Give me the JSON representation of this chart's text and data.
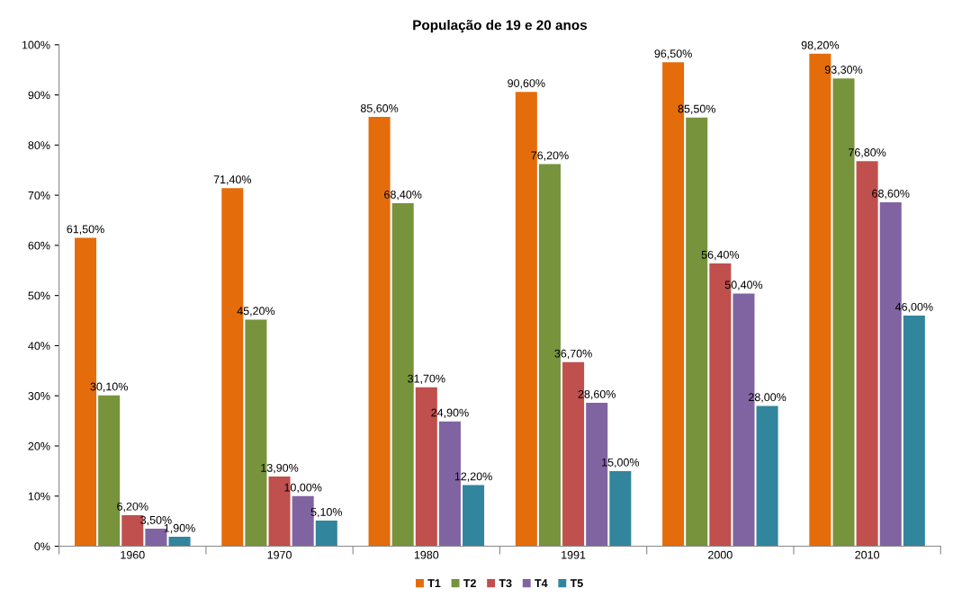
{
  "chart_data": {
    "type": "bar",
    "title": "População de 19 e 20 anos",
    "categories": [
      "1960",
      "1970",
      "1980",
      "1991",
      "2000",
      "2010"
    ],
    "series": [
      {
        "name": "T1",
        "color": "#e46c0a",
        "values": [
          61.5,
          71.4,
          85.6,
          90.6,
          96.5,
          98.2
        ],
        "value_labels": [
          "61,50%",
          "71,40%",
          "85,60%",
          "90,60%",
          "96,50%",
          "98,20%"
        ]
      },
      {
        "name": "T2",
        "color": "#77933c",
        "values": [
          30.1,
          45.2,
          68.4,
          76.2,
          85.5,
          93.3
        ],
        "value_labels": [
          "30,10%",
          "45,20%",
          "68,40%",
          "76,20%",
          "85,50%",
          "93,30%"
        ]
      },
      {
        "name": "T3",
        "color": "#c0504d",
        "values": [
          6.2,
          13.9,
          31.7,
          36.7,
          56.4,
          76.8
        ],
        "value_labels": [
          "6,20%",
          "13,90%",
          "31,70%",
          "36,70%",
          "56,40%",
          "76,80%"
        ]
      },
      {
        "name": "T4",
        "color": "#8064a2",
        "values": [
          3.5,
          10.0,
          24.9,
          28.6,
          50.4,
          68.6
        ],
        "value_labels": [
          "3,50%",
          "10,00%",
          "24,90%",
          "28,60%",
          "50,40%",
          "68,60%"
        ]
      },
      {
        "name": "T5",
        "color": "#31859c",
        "values": [
          1.9,
          5.1,
          12.2,
          15.0,
          28.0,
          46.0
        ],
        "value_labels": [
          "1,90%",
          "5,10%",
          "12,20%",
          "15,00%",
          "28,00%",
          "46,00%"
        ]
      }
    ],
    "ylim": [
      0,
      100
    ],
    "yticks": [
      {
        "value": 0,
        "label": "0%"
      },
      {
        "value": 10,
        "label": "10%"
      },
      {
        "value": 20,
        "label": "20%"
      },
      {
        "value": 30,
        "label": "30%"
      },
      {
        "value": 40,
        "label": "40%"
      },
      {
        "value": 50,
        "label": "50%"
      },
      {
        "value": 60,
        "label": "60%"
      },
      {
        "value": 70,
        "label": "70%"
      },
      {
        "value": 80,
        "label": "80%"
      },
      {
        "value": 90,
        "label": "90%"
      },
      {
        "value": 100,
        "label": "100%"
      }
    ],
    "grid": false,
    "legend": "bottom"
  }
}
